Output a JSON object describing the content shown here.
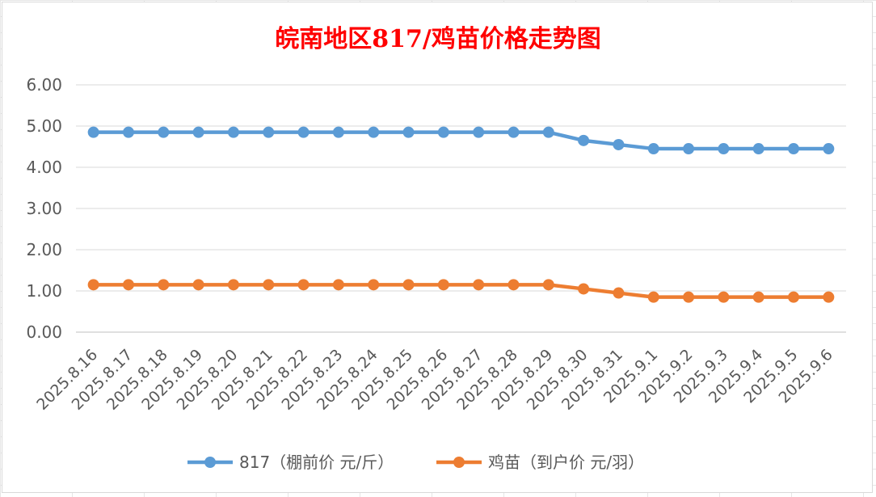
{
  "chart_data": {
    "type": "line",
    "title": "皖南地区817/鸡苗价格走势图",
    "title_color": "#ff0000",
    "categories": [
      "2025.8.16",
      "2025.8.17",
      "2025.8.18",
      "2025.8.19",
      "2025.8.20",
      "2025.8.21",
      "2025.8.22",
      "2025.8.23",
      "2025.8.24",
      "2025.8.25",
      "2025.8.26",
      "2025.8.27",
      "2025.8.28",
      "2025.8.29",
      "2025.8.30",
      "2025.8.31",
      "2025.9.1",
      "2025.9.2",
      "2025.9.3",
      "2025.9.4",
      "2025.9.5",
      "2025.9.6"
    ],
    "ylim": [
      0,
      6
    ],
    "yticks": [
      "0.00",
      "1.00",
      "2.00",
      "3.00",
      "4.00",
      "5.00",
      "6.00"
    ],
    "grid": true,
    "legend_position": "bottom",
    "series": [
      {
        "name": "817（棚前价 元/斤）",
        "color": "#5b9bd5",
        "values": [
          4.85,
          4.85,
          4.85,
          4.85,
          4.85,
          4.85,
          4.85,
          4.85,
          4.85,
          4.85,
          4.85,
          4.85,
          4.85,
          4.85,
          4.65,
          4.55,
          4.45,
          4.45,
          4.45,
          4.45,
          4.45,
          4.45
        ]
      },
      {
        "name": "鸡苗（到户价 元/羽）",
        "color": "#ed7d31",
        "values": [
          1.15,
          1.15,
          1.15,
          1.15,
          1.15,
          1.15,
          1.15,
          1.15,
          1.15,
          1.15,
          1.15,
          1.15,
          1.15,
          1.15,
          1.05,
          0.95,
          0.85,
          0.85,
          0.85,
          0.85,
          0.85,
          0.85
        ]
      }
    ]
  }
}
